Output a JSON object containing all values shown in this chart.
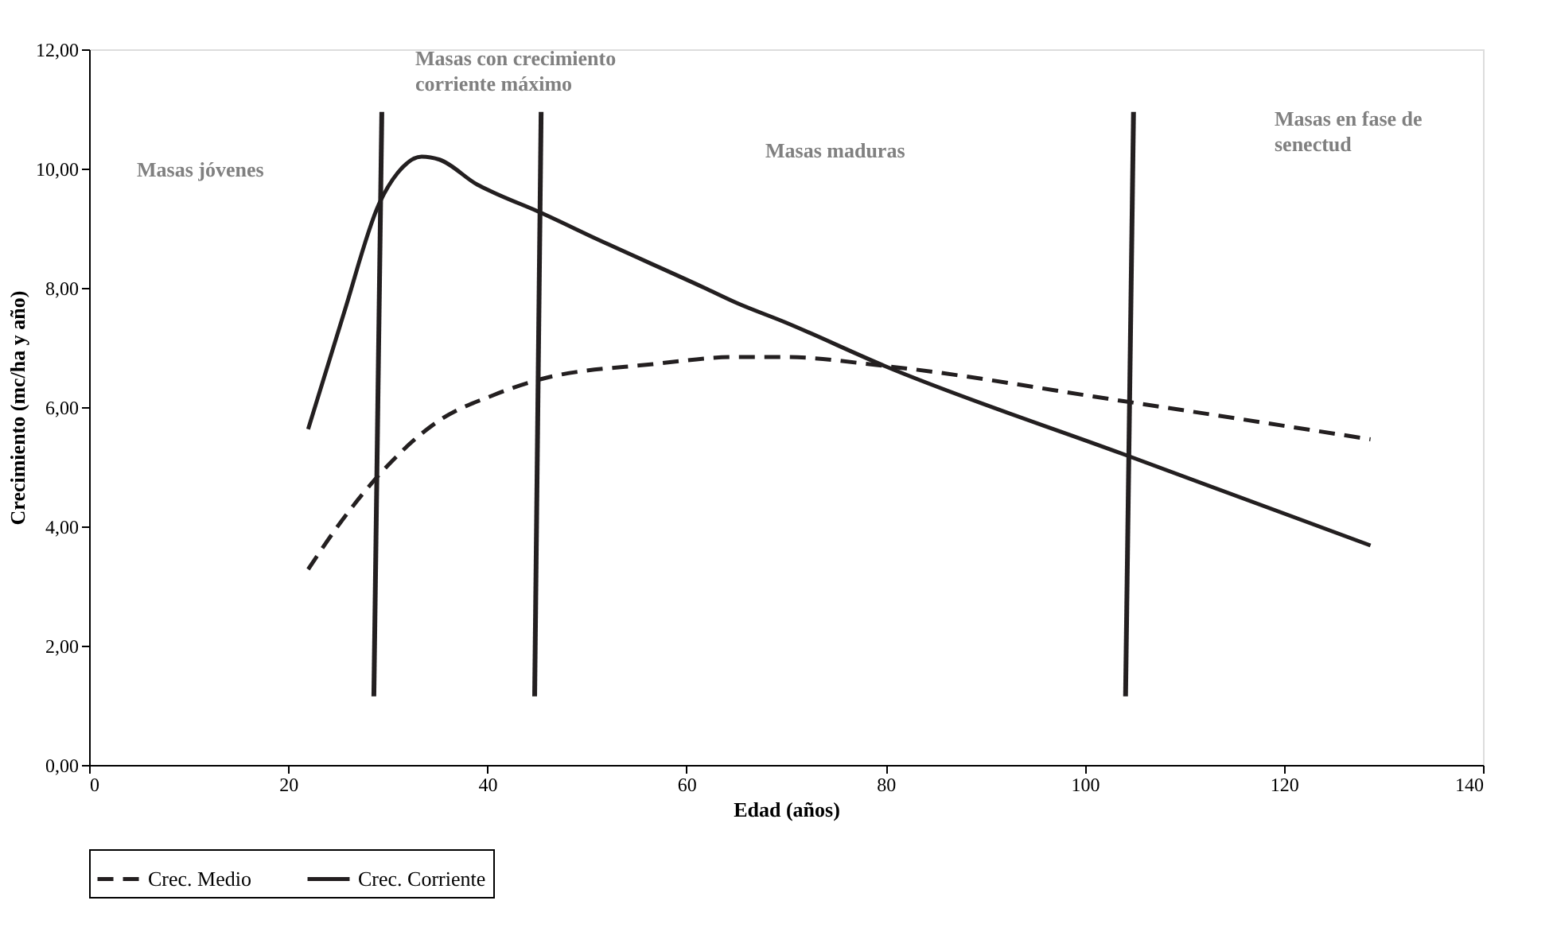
{
  "chart_data": {
    "type": "line",
    "xlabel": "Edad (años)",
    "ylabel": "Crecimiento (mc/ha y año)",
    "xlim": [
      0,
      140
    ],
    "xticks": [
      0,
      20,
      40,
      60,
      80,
      100,
      120,
      140
    ],
    "ylim": [
      0,
      12
    ],
    "yticks": [
      {
        "value": 0,
        "label": "0,00"
      },
      {
        "value": 2,
        "label": "2,00"
      },
      {
        "value": 4,
        "label": "4,00"
      },
      {
        "value": 6,
        "label": "6,00"
      },
      {
        "value": 8,
        "label": "8,00"
      },
      {
        "value": 10,
        "label": "10,00"
      },
      {
        "value": 12,
        "label": "12,00"
      }
    ],
    "grid": false,
    "legend": "bottom",
    "series": [
      {
        "name": "Crec. Medio",
        "color": "#231f20",
        "line_style": "dashed",
        "x": [
          22,
          25.4,
          29.1,
          35.2,
          40.6,
          45.4,
          56.6,
          65,
          69.8,
          79.9,
          103.9,
          128.7
        ],
        "values": [
          3.28,
          4.1,
          4.86,
          5.78,
          6.2,
          6.47,
          6.72,
          6.84,
          6.84,
          6.69,
          6.1,
          5.46
        ]
      },
      {
        "name": "Crec. Corriente",
        "color": "#231f20",
        "line_style": "solid",
        "x": [
          22,
          25.6,
          29.1,
          31,
          33.4,
          35.2,
          39,
          40.6,
          45.1,
          51.1,
          61.8,
          65,
          69.8,
          79.9,
          103.9,
          128.7
        ],
        "values": [
          5.63,
          7.58,
          9.4,
          9.93,
          10.2,
          10.15,
          9.73,
          9.6,
          9.28,
          8.81,
          8.0,
          7.75,
          7.43,
          6.69,
          5.21,
          3.68
        ]
      },
      {
        "color": "#231f20",
        "line_style": "solid",
        "x": [
          28.6,
          29.4
        ],
        "values": [
          1.15,
          10.95
        ]
      },
      {
        "color": "#231f20",
        "line_style": "solid",
        "x": [
          44.75,
          45.4
        ],
        "values": [
          1.15,
          10.95
        ]
      },
      {
        "color": "#231f20",
        "line_style": "solid",
        "x": [
          104.1,
          104.9
        ],
        "values": [
          1.15,
          10.95
        ]
      }
    ],
    "annotations": [
      "Masas jóvenes",
      "Masas con crecimiento\ncorriente máximo",
      "Masas maduras",
      "Masas en fase de\nsenectud"
    ]
  }
}
